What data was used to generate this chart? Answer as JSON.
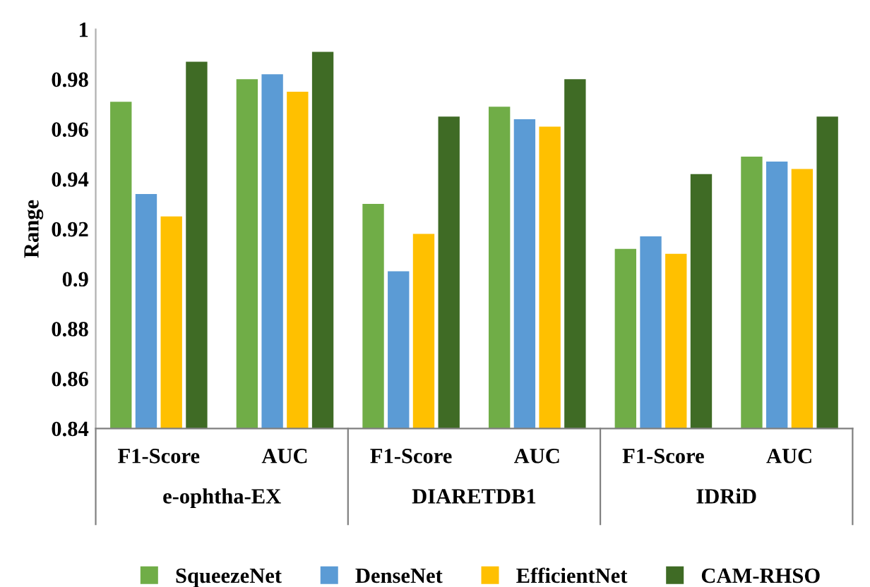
{
  "chart_data": {
    "type": "bar",
    "ylabel": "Range",
    "categories": [
      "F1-Score",
      "AUC",
      "F1-Score",
      "AUC",
      "F1-Score",
      "AUC"
    ],
    "annotations": [
      "e-ophtha-EX",
      "DIARETDB1",
      "IDRiD"
    ],
    "series": [
      {
        "name": "SqueezeNet",
        "color": "#70ad47",
        "values": [
          0.971,
          0.98,
          0.93,
          0.969,
          0.912,
          0.949
        ]
      },
      {
        "name": "DenseNet",
        "color": "#5b9bd5",
        "values": [
          0.934,
          0.982,
          0.903,
          0.964,
          0.917,
          0.947
        ]
      },
      {
        "name": "EfficientNet",
        "color": "#ffc000",
        "values": [
          0.925,
          0.975,
          0.918,
          0.961,
          0.91,
          0.944
        ]
      },
      {
        "name": "CAM-RHSO",
        "color": "#3f6b25",
        "values": [
          0.987,
          0.991,
          0.965,
          0.98,
          0.942,
          0.965
        ]
      }
    ],
    "ylim": [
      0.84,
      1
    ],
    "yticks": [
      0.84,
      0.86,
      0.88,
      {
        "value": 0.9,
        "label": "0.9"
      },
      0.92,
      0.94,
      0.96,
      0.98,
      {
        "value": 1,
        "label": "1"
      }
    ],
    "grid": false,
    "legend": "bottom"
  }
}
